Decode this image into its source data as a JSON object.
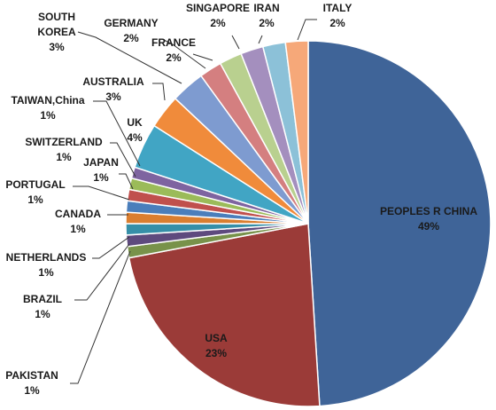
{
  "chart_data": {
    "type": "pie",
    "title": "",
    "legend": "none",
    "slices": [
      {
        "label": "PEOPLES R CHINA",
        "pct_text": "49%",
        "value": 49,
        "color": "#3F6498"
      },
      {
        "label": "USA",
        "pct_text": "23%",
        "value": 23,
        "color": "#9B3B38"
      },
      {
        "label": "PAKISTAN",
        "pct_text": "1%",
        "value": 1,
        "color": "#78924A"
      },
      {
        "label": "BRAZIL",
        "pct_text": "1%",
        "value": 1,
        "color": "#5E4A7E"
      },
      {
        "label": "NETHERLANDS",
        "pct_text": "1%",
        "value": 1,
        "color": "#368FA8"
      },
      {
        "label": "CANADA",
        "pct_text": "1%",
        "value": 1,
        "color": "#DA7E30"
      },
      {
        "label": "PORTUGAL",
        "pct_text": "1%",
        "value": 1,
        "color": "#4A7EBB"
      },
      {
        "label": "JAPAN",
        "pct_text": "1%",
        "value": 1,
        "color": "#C0504D"
      },
      {
        "label": "SWITZERLAND",
        "pct_text": "1%",
        "value": 1,
        "color": "#9BBB59"
      },
      {
        "label": "TAIWAN,China",
        "pct_text": "1%",
        "value": 1,
        "color": "#7E64A0"
      },
      {
        "label": "UK",
        "pct_text": "4%",
        "value": 4,
        "color": "#41A5C4"
      },
      {
        "label": "AUSTRALIA",
        "pct_text": "3%",
        "value": 3,
        "color": "#F08B3B"
      },
      {
        "label": "SOUTH KOREA",
        "pct_text": "3%",
        "value": 3,
        "color": "#7E9BD0"
      },
      {
        "label": "GERMANY",
        "pct_text": "2%",
        "value": 2,
        "color": "#D47F80"
      },
      {
        "label": "FRANCE",
        "pct_text": "2%",
        "value": 2,
        "color": "#B9D08F"
      },
      {
        "label": "SINGAPORE",
        "pct_text": "2%",
        "value": 2,
        "color": "#A48FBE"
      },
      {
        "label": "IRAN",
        "pct_text": "2%",
        "value": 2,
        "color": "#8CC1D8"
      },
      {
        "label": "ITALY",
        "pct_text": "2%",
        "value": 2,
        "color": "#F6A879"
      }
    ]
  }
}
